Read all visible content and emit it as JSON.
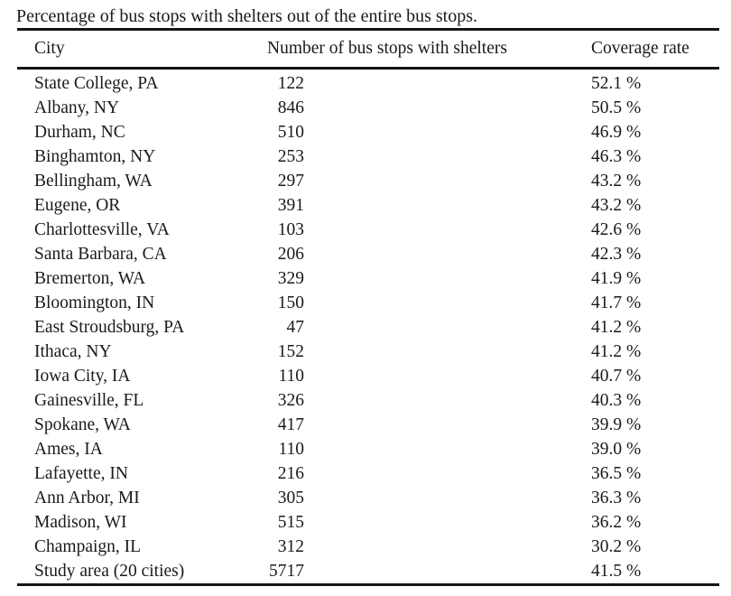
{
  "caption": "Percentage of bus stops with shelters out of the entire bus stops.",
  "colors": {
    "background": "#ffffff",
    "text": "#1a1a1a",
    "rule": "#141414"
  },
  "table": {
    "columns": [
      "City",
      "Number of bus stops with shelters",
      "Coverage rate"
    ],
    "rows": [
      {
        "city": "State College, PA",
        "shelters": "122",
        "rate": "52.1 %"
      },
      {
        "city": "Albany, NY",
        "shelters": "846",
        "rate": "50.5 %"
      },
      {
        "city": "Durham, NC",
        "shelters": "510",
        "rate": "46.9 %"
      },
      {
        "city": "Binghamton, NY",
        "shelters": "253",
        "rate": "46.3 %"
      },
      {
        "city": "Bellingham, WA",
        "shelters": "297",
        "rate": "43.2 %"
      },
      {
        "city": "Eugene, OR",
        "shelters": "391",
        "rate": "43.2 %"
      },
      {
        "city": "Charlottesville, VA",
        "shelters": "103",
        "rate": "42.6 %"
      },
      {
        "city": "Santa Barbara, CA",
        "shelters": "206",
        "rate": "42.3 %"
      },
      {
        "city": "Bremerton, WA",
        "shelters": "329",
        "rate": "41.9 %"
      },
      {
        "city": "Bloomington, IN",
        "shelters": "150",
        "rate": "41.7 %"
      },
      {
        "city": "East Stroudsburg, PA",
        "shelters": "47",
        "rate": "41.2 %"
      },
      {
        "city": "Ithaca, NY",
        "shelters": "152",
        "rate": "41.2 %"
      },
      {
        "city": "Iowa City, IA",
        "shelters": "110",
        "rate": "40.7 %"
      },
      {
        "city": "Gainesville, FL",
        "shelters": "326",
        "rate": "40.3 %"
      },
      {
        "city": "Spokane, WA",
        "shelters": "417",
        "rate": "39.9 %"
      },
      {
        "city": "Ames, IA",
        "shelters": "110",
        "rate": "39.0 %"
      },
      {
        "city": "Lafayette, IN",
        "shelters": "216",
        "rate": "36.5 %"
      },
      {
        "city": "Ann Arbor, MI",
        "shelters": "305",
        "rate": "36.3 %"
      },
      {
        "city": "Madison, WI",
        "shelters": "515",
        "rate": "36.2 %"
      },
      {
        "city": "Champaign, IL",
        "shelters": "312",
        "rate": "30.2 %"
      },
      {
        "city": "Study area (20 cities)",
        "shelters": "5717",
        "rate": "41.5 %"
      }
    ]
  }
}
